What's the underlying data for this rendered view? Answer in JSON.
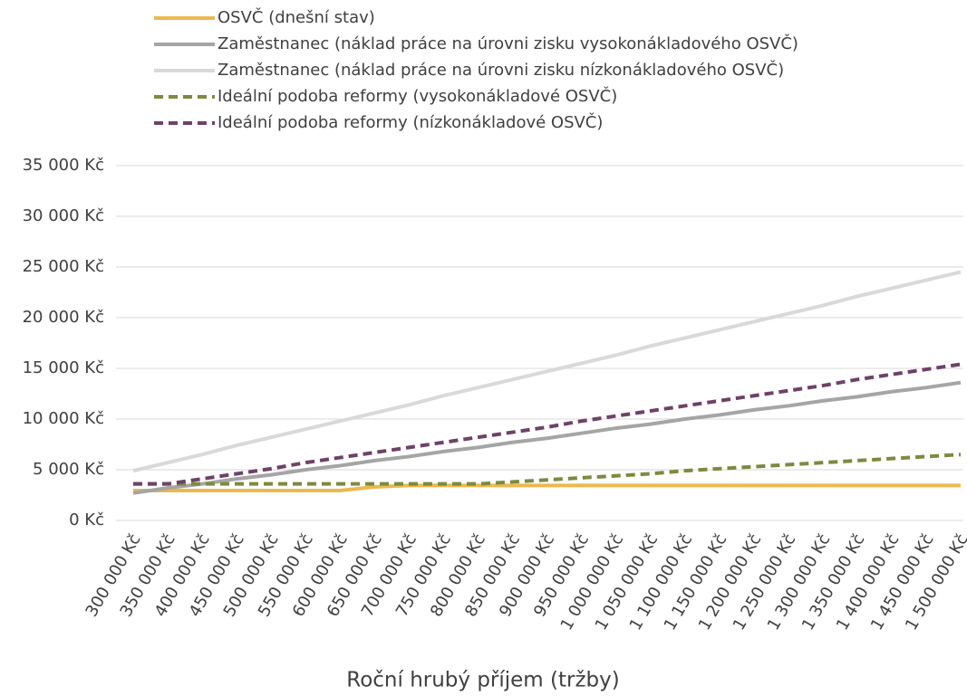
{
  "chart_data": {
    "type": "line",
    "x_label": "Roční hrubý příjem (tržby)",
    "categories": [
      "300 000 Kč",
      "350 000 Kč",
      "400 000 Kč",
      "450 000 Kč",
      "500 000 Kč",
      "550 000 Kč",
      "600 000 Kč",
      "650 000 Kč",
      "700 000 Kč",
      "750 000 Kč",
      "800 000 Kč",
      "850 000 Kč",
      "900 000 Kč",
      "950 000 Kč",
      "1 000 000 Kč",
      "1 050 000 Kč",
      "1 100 000 Kč",
      "1 150 000 Kč",
      "1 200 000 Kč",
      "1 250 000 Kč",
      "1 300 000 Kč",
      "1 350 000 Kč",
      "1 400 000 Kč",
      "1 450 000 Kč",
      "1 500 000 Kč"
    ],
    "series": [
      {
        "name": "OSVČ (dnešní stav)",
        "color": "#ecb94e",
        "dashed": false,
        "values": [
          2950,
          2950,
          2950,
          2950,
          2950,
          2950,
          2950,
          3300,
          3450,
          3450,
          3450,
          3450,
          3450,
          3450,
          3450,
          3450,
          3450,
          3450,
          3450,
          3450,
          3450,
          3450,
          3450,
          3450,
          3450
        ]
      },
      {
        "name": "Zaměstnanec (náklad práce na úrovni zisku vysokonákladového OSVČ)",
        "color": "#a5a5a5",
        "dashed": false,
        "values": [
          2700,
          3200,
          3600,
          4100,
          4500,
          5000,
          5400,
          5900,
          6300,
          6800,
          7200,
          7700,
          8100,
          8600,
          9100,
          9500,
          10000,
          10400,
          10900,
          11300,
          11800,
          12200,
          12700,
          13100,
          13600
        ]
      },
      {
        "name": "Zaměstnanec (náklad práce na úrovni zisku nízkonákladového OSVČ)",
        "color": "#d9d9d9",
        "dashed": false,
        "values": [
          4900,
          5700,
          6500,
          7400,
          8200,
          9000,
          9800,
          10600,
          11400,
          12300,
          13100,
          13900,
          14700,
          15500,
          16300,
          17200,
          18000,
          18800,
          19600,
          20400,
          21200,
          22100,
          22900,
          23700,
          24500
        ]
      },
      {
        "name": "Ideální podoba reformy (vysokonákladové OSVČ)",
        "color": "#7b8b3d",
        "dashed": true,
        "values": [
          3600,
          3600,
          3600,
          3600,
          3600,
          3600,
          3600,
          3600,
          3600,
          3600,
          3600,
          3800,
          4000,
          4200,
          4400,
          4600,
          4900,
          5100,
          5300,
          5500,
          5700,
          5900,
          6100,
          6300,
          6500
        ]
      },
      {
        "name": "Ideální podoba reformy (nízkonákladové OSVČ)",
        "color": "#6e4267",
        "dashed": true,
        "values": [
          3600,
          3600,
          4100,
          4600,
          5100,
          5700,
          6200,
          6700,
          7200,
          7700,
          8200,
          8700,
          9200,
          9800,
          10300,
          10800,
          11300,
          11800,
          12300,
          12800,
          13300,
          13900,
          14400,
          14900,
          15400
        ]
      }
    ],
    "ylim": [
      0,
      35000
    ],
    "yticks": [
      {
        "value": 0,
        "label": "0 Kč"
      },
      {
        "value": 5000,
        "label": "5 000 Kč"
      },
      {
        "value": 10000,
        "label": "10 000 Kč"
      },
      {
        "value": 15000,
        "label": "15 000 Kč"
      },
      {
        "value": 20000,
        "label": "20 000 Kč"
      },
      {
        "value": 25000,
        "label": "25 000 Kč"
      },
      {
        "value": 30000,
        "label": "30 000 Kč"
      },
      {
        "value": 35000,
        "label": "35 000 Kč"
      }
    ],
    "grid": true,
    "legend": "top"
  }
}
